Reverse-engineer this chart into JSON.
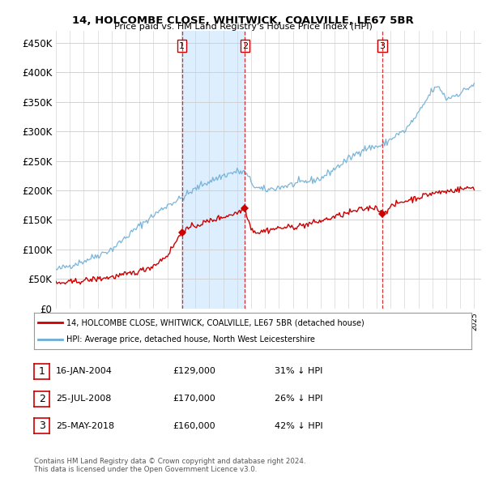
{
  "title": "14, HOLCOMBE CLOSE, WHITWICK, COALVILLE, LE67 5BR",
  "subtitle": "Price paid vs. HM Land Registry's House Price Index (HPI)",
  "ylim": [
    0,
    470000
  ],
  "yticks": [
    0,
    50000,
    100000,
    150000,
    200000,
    250000,
    300000,
    350000,
    400000,
    450000
  ],
  "ytick_labels": [
    "£0",
    "£50K",
    "£100K",
    "£150K",
    "£200K",
    "£250K",
    "£300K",
    "£350K",
    "£400K",
    "£450K"
  ],
  "x_start_year": 1995,
  "x_end_year": 2025,
  "hpi_color": "#6baed6",
  "price_color": "#cc0000",
  "vline_color": "#cc0000",
  "plot_bg_color": "#ffffff",
  "shade_color": "#ddeeff",
  "transactions": [
    {
      "label": "1",
      "date": 2004.04,
      "price": 129000
    },
    {
      "label": "2",
      "date": 2008.56,
      "price": 170000
    },
    {
      "label": "3",
      "date": 2018.4,
      "price": 160000
    }
  ],
  "table_rows": [
    {
      "num": "1",
      "date": "16-JAN-2004",
      "price": "£129,000",
      "hpi": "31% ↓ HPI"
    },
    {
      "num": "2",
      "date": "25-JUL-2008",
      "price": "£170,000",
      "hpi": "26% ↓ HPI"
    },
    {
      "num": "3",
      "date": "25-MAY-2018",
      "price": "£160,000",
      "hpi": "42% ↓ HPI"
    }
  ],
  "legend_line1": "14, HOLCOMBE CLOSE, WHITWICK, COALVILLE, LE67 5BR (detached house)",
  "legend_line2": "HPI: Average price, detached house, North West Leicestershire",
  "footer": "Contains HM Land Registry data © Crown copyright and database right 2024.\nThis data is licensed under the Open Government Licence v3.0."
}
